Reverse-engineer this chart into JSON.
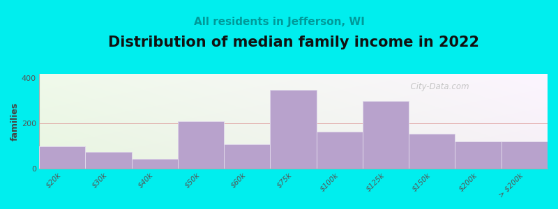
{
  "title": "Distribution of median family income in 2022",
  "subtitle": "All residents in Jefferson, WI",
  "ylabel": "families",
  "categories": [
    "$20k",
    "$30k",
    "$40k",
    "$50k",
    "$60k",
    "$75k",
    "$100k",
    "$125k",
    "$150k",
    "$200k",
    "> $200k"
  ],
  "values": [
    100,
    75,
    45,
    210,
    110,
    350,
    165,
    300,
    155,
    120,
    120
  ],
  "bar_color": "#b8a2cc",
  "bar_edgecolor": "#e0d8ea",
  "background_outer": "#00eeee",
  "ylim": [
    0,
    420
  ],
  "yticks": [
    0,
    200,
    400
  ],
  "title_fontsize": 15,
  "subtitle_fontsize": 11,
  "subtitle_color": "#009999",
  "watermark": "  City-Data.com",
  "fig_width": 8.0,
  "fig_height": 3.0,
  "hline_color": "#dd9999",
  "hline_y": 200
}
